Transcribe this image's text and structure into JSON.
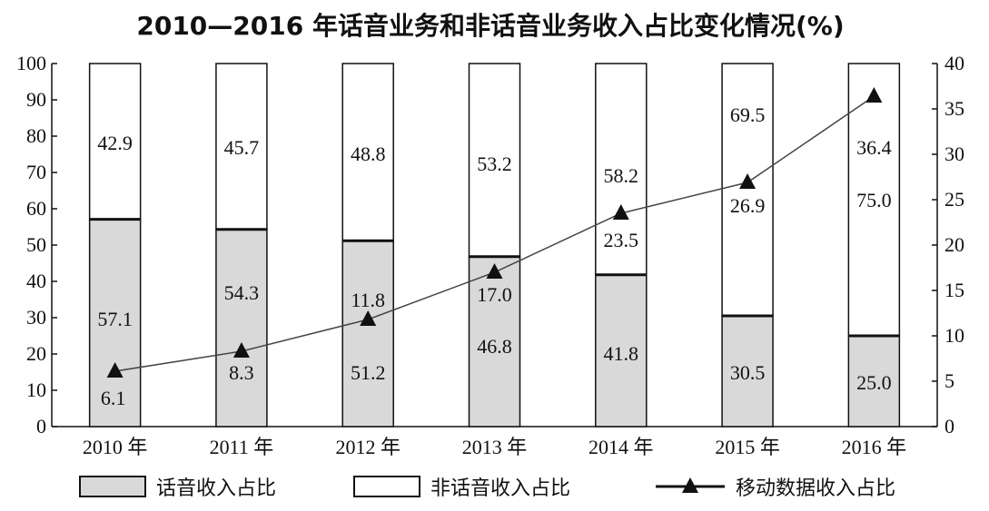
{
  "chart_data": {
    "type": "bar",
    "stacked": true,
    "title": "2010—2016 年话音业务和非话音业务收入占比变化情况(%)",
    "categories": [
      "2010 年",
      "2011 年",
      "2012 年",
      "2013 年",
      "2014 年",
      "2015 年",
      "2016 年"
    ],
    "series": [
      {
        "name": "话音收入占比",
        "kind": "bar",
        "axis": "left",
        "color": "#d9d9d9",
        "values": [
          57.1,
          54.3,
          51.2,
          46.8,
          41.8,
          30.5,
          25.0
        ],
        "labels": [
          "57.1",
          "54.3",
          "51.2",
          "46.8",
          "41.8",
          "30.5",
          "25.0"
        ]
      },
      {
        "name": "非话音收入占比",
        "kind": "bar",
        "axis": "left",
        "color": "#ffffff",
        "values": [
          42.9,
          45.7,
          48.8,
          53.2,
          58.2,
          69.5,
          75.0
        ],
        "labels": [
          "42.9",
          "45.7",
          "48.8",
          "53.2",
          "58.2",
          "69.5",
          "75.0"
        ]
      },
      {
        "name": "移动数据收入占比",
        "kind": "line",
        "axis": "right",
        "color": "#444444",
        "marker": "triangle",
        "values": [
          6.1,
          8.3,
          11.8,
          17.0,
          23.5,
          26.9,
          36.4
        ],
        "labels": [
          "6.1",
          "8.3",
          "11.8",
          "17.0",
          "23.5",
          "26.9",
          "36.4"
        ]
      }
    ],
    "y_left": {
      "range": [
        0,
        100
      ],
      "ticks": [
        "0",
        "10",
        "20",
        "30",
        "40",
        "50",
        "60",
        "70",
        "80",
        "90",
        "100"
      ]
    },
    "y_right": {
      "range": [
        0,
        40
      ],
      "ticks": [
        "0",
        "5",
        "10",
        "15",
        "20",
        "25",
        "30",
        "35",
        "40"
      ]
    },
    "grid": false,
    "legend_position": "bottom"
  }
}
